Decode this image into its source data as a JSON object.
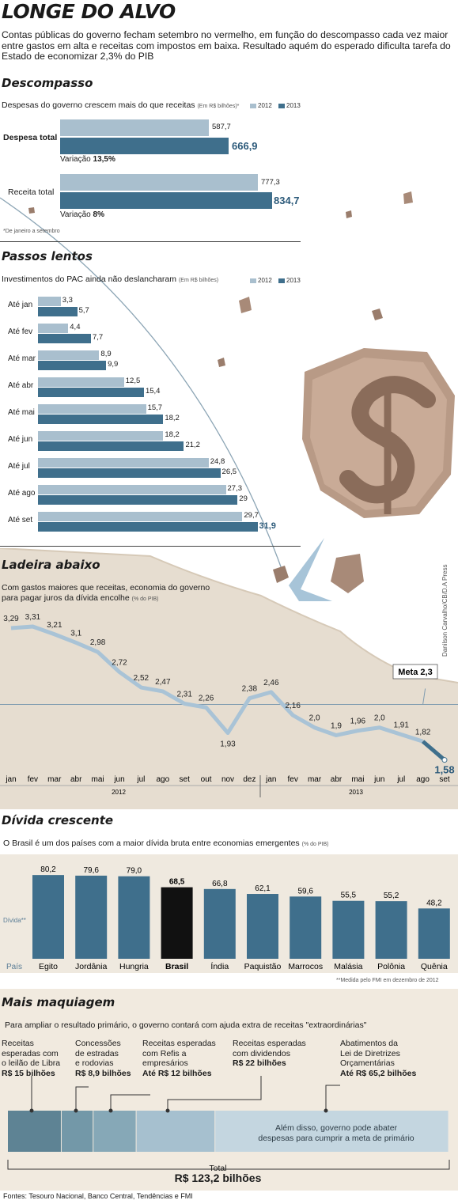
{
  "header": {
    "title": "LONGE DO ALVO",
    "subtitle": "Contas públicas do governo fecham setembro no vermelho, em função do descompasso cada vez maior entre gastos em alta e receitas com impostos em baixa. Resultado aquém do esperado dificulta tarefa do Estado de economizar 2,3% do PIB"
  },
  "colors": {
    "y2012": "#a9bfce",
    "y2013": "#3f6f8c",
    "brasil": "#111111",
    "line": "#a9c3d6",
    "dark_line": "#3f6f8c"
  },
  "credit": "Danilson Carvalho/CB/D.A Press",
  "descompasso": {
    "title": "Descompasso",
    "caption": "Despesas do governo crescem mais do que receitas",
    "unit": "(Em R$ bilhões)*",
    "legend_2012": "2012",
    "legend_2013": "2013",
    "footnote": "*De janeiro a setembro",
    "groups": [
      {
        "label": "Despesa total",
        "v2012": "587,7",
        "v2013": "666,9",
        "var_label": "Variação",
        "var_value": "13,5%"
      },
      {
        "label": "Receita total",
        "v2012": "777,3",
        "v2013": "834,7",
        "var_label": "Variação",
        "var_value": "8%"
      }
    ]
  },
  "passos": {
    "title": "Passos lentos",
    "caption": "Investimentos do PAC ainda não deslancharam",
    "unit": "(Em R$ bilhões)",
    "legend_2012": "2012",
    "legend_2013": "2013"
  },
  "ladeira": {
    "title": "Ladeira abaixo",
    "caption_line1": "Com gastos maiores que receitas, economia do governo",
    "caption_line2": "para pagar juros da dívida encolhe",
    "unit": "(% do PIB)",
    "meta_label": "Meta 2,3",
    "year_2012": "2012",
    "year_2013": "2013"
  },
  "divida": {
    "title": "Dívida crescente",
    "caption": "O Brasil é um dos países com a maior dívida bruta entre economias emergentes",
    "unit": "(% do PIB)",
    "y_label": "Dívida**",
    "x_label": "País",
    "footnote": "**Medida pelo FMI em dezembro de 2012"
  },
  "maquiagem": {
    "title": "Mais maquiagem",
    "caption": "Para ampliar o resultado primário, o governo contará com ajuda extra de receitas \"extraordinárias\"",
    "items": [
      {
        "line1": "Receitas",
        "line2": "esperadas com",
        "line3": "o leilão de Libra",
        "value": "R$ 15 bilhões"
      },
      {
        "line1": "Concessões",
        "line2": "de estradas",
        "line3": "e rodovias",
        "value": "R$ 8,9 bilhões"
      },
      {
        "line1": "Receitas esperadas",
        "line2": "com Refis a",
        "line3": "empresários",
        "value": "Até R$ 12 bilhões"
      },
      {
        "line1": "Receitas esperadas",
        "line2": "com dividendos",
        "line3": "",
        "value": "R$ 22 bilhões"
      },
      {
        "line1": "Abatimentos da",
        "line2": "Lei de Diretrizes",
        "line3": "Orçamentárias",
        "value": "Até R$ 65,2 bilhões"
      }
    ],
    "note_line1": "Além disso, governo pode abater",
    "note_line2": "despesas para cumprir a meta de primário",
    "total_label": "Total",
    "total_value": "R$ 123,2 bilhões"
  },
  "sources": "Fontes: Tesouro Nacional, Banco Central, Tendências e FMI",
  "chart_data": [
    {
      "type": "bar",
      "title": "Descompasso",
      "categories": [
        "Despesa total",
        "Receita total"
      ],
      "series": [
        {
          "name": "2012",
          "values": [
            587.7,
            777.3
          ]
        },
        {
          "name": "2013",
          "values": [
            666.9,
            834.7
          ]
        }
      ]
    },
    {
      "type": "bar",
      "title": "Passos lentos",
      "categories": [
        "Até jan",
        "Até fev",
        "Até mar",
        "Até abr",
        "Até mai",
        "Até jun",
        "Até jul",
        "Até ago",
        "Até set"
      ],
      "series": [
        {
          "name": "2012",
          "values": [
            3.3,
            4.4,
            8.9,
            12.5,
            15.7,
            18.2,
            24.8,
            27.3,
            29.7
          ],
          "labels": [
            "3,3",
            "4,4",
            "8,9",
            "12,5",
            "15,7",
            "18,2",
            "24,8",
            "27,3",
            "29,7"
          ]
        },
        {
          "name": "2013",
          "values": [
            5.7,
            7.7,
            9.9,
            15.4,
            18.2,
            21.2,
            26.5,
            29,
            31.9
          ],
          "labels": [
            "5,7",
            "7,7",
            "9,9",
            "15,4",
            "18,2",
            "21,2",
            "26,5",
            "29",
            "31,9"
          ]
        }
      ]
    },
    {
      "type": "line",
      "title": "Ladeira abaixo",
      "x": [
        "jan",
        "fev",
        "mar",
        "abr",
        "mai",
        "jun",
        "jul",
        "ago",
        "set",
        "out",
        "nov",
        "dez",
        "jan",
        "fev",
        "mar",
        "abr",
        "mai",
        "jun",
        "jul",
        "ago",
        "set"
      ],
      "values": [
        3.29,
        3.31,
        3.21,
        3.1,
        2.98,
        2.72,
        2.52,
        2.47,
        2.31,
        2.26,
        1.93,
        2.38,
        2.46,
        2.16,
        2.0,
        1.9,
        1.96,
        2.0,
        1.91,
        1.82,
        1.58
      ],
      "labels": [
        "3,29",
        "3,31",
        "3,21",
        "3,1",
        "2,98",
        "2,72",
        "2,52",
        "2,47",
        "2,31",
        "2,26",
        "1,93",
        "2,38",
        "2,46",
        "2,16",
        "2,0",
        "1,9",
        "1,96",
        "2,0",
        "1,91",
        "1,82",
        "1,58"
      ],
      "meta": 2.3
    },
    {
      "type": "bar",
      "title": "Dívida crescente",
      "categories": [
        "Egito",
        "Jordânia",
        "Hungria",
        "Brasil",
        "Índia",
        "Paquistão",
        "Marrocos",
        "Malásia",
        "Polônia",
        "Quênia"
      ],
      "values": [
        80.2,
        79.6,
        79.0,
        68.5,
        66.8,
        62.1,
        59.6,
        55.5,
        55.2,
        48.2
      ],
      "labels": [
        "80,2",
        "79,6",
        "79,0",
        "68,5",
        "66,8",
        "62,1",
        "59,6",
        "55,5",
        "55,2",
        "48,2"
      ],
      "highlight": "Brasil"
    },
    {
      "type": "bar",
      "title": "Mais maquiagem",
      "categories": [
        "Libra",
        "Concessões",
        "Refis",
        "Dividendos",
        "Abatimentos LDO"
      ],
      "values": [
        15,
        8.9,
        12,
        22,
        65.2
      ],
      "total": 123.2
    }
  ]
}
